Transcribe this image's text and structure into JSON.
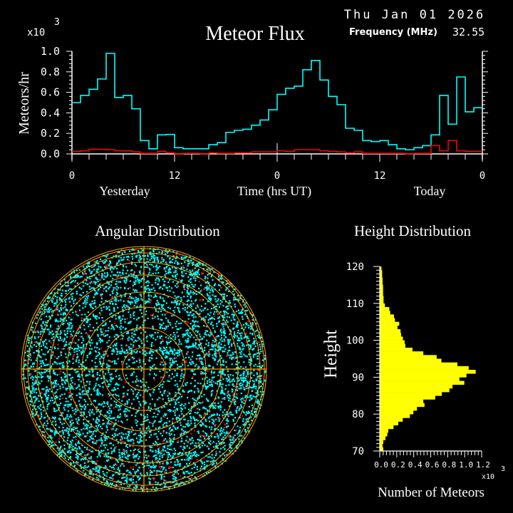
{
  "header": {
    "title": "Meteor Flux",
    "date": "Thu Jan 01 2026",
    "frequency_label": "Frequency (MHz)",
    "frequency_value": "32.55"
  },
  "colors": {
    "background": "#000000",
    "series_primary": "#00ffff",
    "series_secondary": "#ff0000",
    "grid_rings": "#ffa500",
    "histogram": "#ffff00",
    "axes": "#ffffff"
  },
  "chart_data": [
    {
      "type": "line",
      "style": "step",
      "title": "Meteor Flux",
      "ylabel": "Meteors/hr",
      "xlabel": "Time (hrs UT)",
      "y_multiplier": "x10",
      "y_multiplier_exp": "3",
      "ylim": [
        0,
        1.0
      ],
      "xlim_hours": [
        0,
        48
      ],
      "y_ticks": [
        "0.0",
        "0.2",
        "0.4",
        "0.6",
        "0.8",
        "1.0"
      ],
      "x_ticks": [
        "0",
        "12",
        "0",
        "12",
        "0"
      ],
      "day_labels": [
        "Yesterday",
        "Today"
      ],
      "x_hours": [
        0,
        1,
        2,
        3,
        4,
        5,
        6,
        7,
        8,
        9,
        10,
        11,
        12,
        13,
        14,
        15,
        16,
        17,
        18,
        19,
        20,
        21,
        22,
        23,
        24,
        25,
        26,
        27,
        28,
        29,
        30,
        31,
        32,
        33,
        34,
        35,
        36,
        37,
        38,
        39,
        40,
        41,
        42,
        43,
        44,
        45,
        46,
        47
      ],
      "series": [
        {
          "color": "#00ffff",
          "values": [
            0.5,
            0.57,
            0.63,
            0.73,
            0.98,
            0.55,
            0.57,
            0.44,
            0.13,
            0.05,
            0.185,
            0.19,
            0.06,
            0.05,
            0.05,
            0.05,
            0.09,
            0.11,
            0.21,
            0.23,
            0.24,
            0.28,
            0.33,
            0.43,
            0.58,
            0.64,
            0.66,
            0.82,
            0.91,
            0.72,
            0.56,
            0.48,
            0.25,
            0.23,
            0.13,
            0.12,
            0.13,
            0.09,
            0.05,
            0.04,
            0.06,
            0.08,
            0.185,
            0.57,
            0.29,
            0.75,
            0.41,
            0.45
          ]
        },
        {
          "color": "#ff0000",
          "values": [
            0.025,
            0.03,
            0.045,
            0.045,
            0.04,
            0.03,
            0.03,
            0.02,
            0.005,
            0.005,
            0.025,
            0.01,
            0,
            0.005,
            0.005,
            0,
            0.01,
            0.005,
            0.005,
            0.01,
            0.01,
            0.02,
            0.02,
            0.02,
            0.03,
            0.025,
            0.04,
            0.04,
            0.04,
            0.03,
            0.025,
            0.02,
            0.01,
            0.02,
            0.005,
            0.005,
            0.005,
            0.005,
            0.005,
            0,
            0.005,
            0.005,
            0.08,
            0.03,
            0.13,
            0.03,
            0.025,
            0.025
          ]
        }
      ],
      "grid": false
    },
    {
      "type": "scatter",
      "projection": "polar",
      "title": "Angular Distribution",
      "point_colors": [
        "#00ffff",
        "#ff0000"
      ],
      "ring_color": "#ffa500",
      "grid": true
    },
    {
      "type": "bar",
      "orientation": "horizontal",
      "title": "Height Distribution",
      "ylabel": "Height",
      "xlabel": "Number of Meteors",
      "x_multiplier": "x10",
      "x_multiplier_exp": "3",
      "ylim": [
        70,
        120
      ],
      "xlim": [
        0,
        1.2
      ],
      "y_ticks": [
        "70",
        "80",
        "90",
        "100",
        "110",
        "120"
      ],
      "x_ticks": [
        "0.0",
        "0.2",
        "0.4",
        "0.6",
        "0.8",
        "1.0",
        "1.2"
      ],
      "bin_width_km": 1,
      "bin_start_km": [
        70,
        71,
        72,
        73,
        74,
        75,
        76,
        77,
        78,
        79,
        80,
        81,
        82,
        83,
        84,
        85,
        86,
        87,
        88,
        89,
        90,
        91,
        92,
        93,
        94,
        95,
        96,
        97,
        98,
        99,
        100,
        101,
        102,
        103,
        104,
        105,
        106,
        107,
        108,
        109,
        110,
        111,
        112,
        113,
        114,
        115,
        116,
        117,
        118,
        119
      ],
      "counts": [
        42,
        33,
        42,
        67,
        89,
        100,
        162,
        218,
        271,
        354,
        396,
        438,
        527,
        513,
        653,
        731,
        820,
        857,
        996,
        938,
        1021,
        1130,
        1047,
        915,
        726,
        670,
        513,
        385,
        301,
        293,
        273,
        251,
        245,
        209,
        229,
        179,
        167,
        123,
        112,
        61,
        45,
        45,
        39,
        39,
        39,
        33,
        33,
        28,
        28,
        20
      ],
      "color": "#ffff00"
    }
  ]
}
